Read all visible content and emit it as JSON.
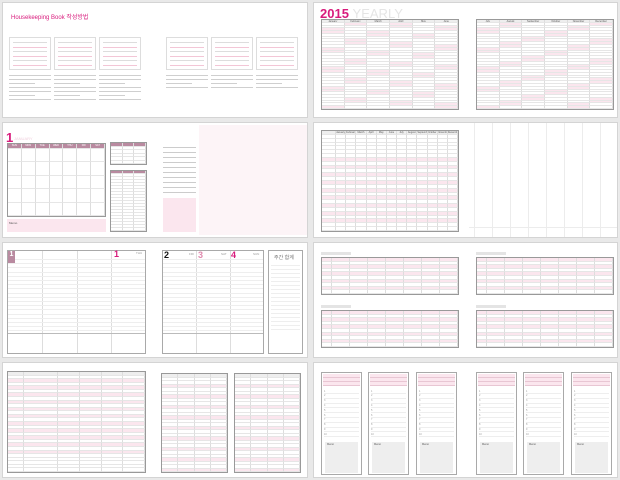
{
  "guide": {
    "title": "Housekeeping Book 작성방법"
  },
  "yearly": {
    "year": "2015",
    "label": "YEARLY",
    "months_first": [
      "January",
      "February",
      "March",
      "April",
      "May",
      "June"
    ],
    "months_second": [
      "July",
      "August",
      "September",
      "October",
      "November",
      "December"
    ]
  },
  "monthly": {
    "month_number": "1",
    "month_name": "JANUARY",
    "weekdays": [
      "SUN",
      "MON",
      "TUE",
      "WED",
      "THU",
      "FRI",
      "SAT"
    ],
    "memo_label": "Memo"
  },
  "weekly": {
    "days": [
      {
        "number": "1",
        "name": "THU"
      },
      {
        "number": "2",
        "name": "FRI"
      },
      {
        "number": "3",
        "name": "SAT"
      },
      {
        "number": "4",
        "name": "SUN"
      }
    ],
    "summary_title": "주간 합계"
  },
  "annual_table": {
    "months": [
      "January",
      "February",
      "March",
      "April",
      "May",
      "June",
      "July",
      "August",
      "September",
      "October",
      "November",
      "December"
    ]
  },
  "daily_cards": {
    "memo_label": "Memo"
  },
  "colors": {
    "accent": "#d81b7c",
    "light_pink": "#fbe6ee",
    "mauve": "#b98aa0",
    "memo_grey": "#eeeeee"
  }
}
